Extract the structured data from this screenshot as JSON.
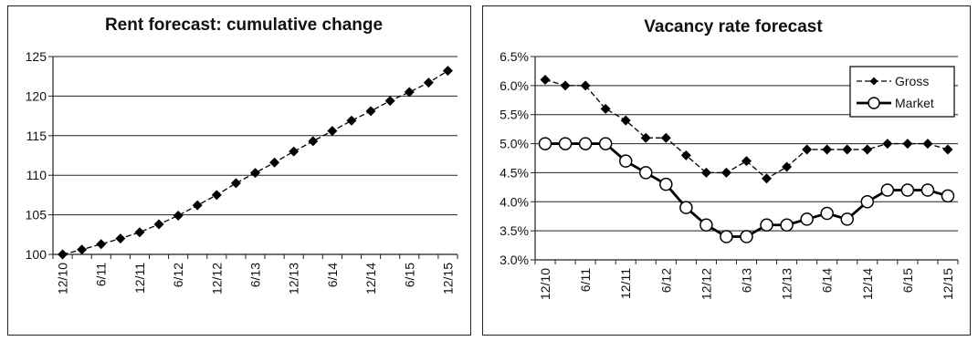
{
  "chart_data": [
    {
      "type": "line",
      "title": "Rent forecast: cumulative change",
      "x_tick_labels": [
        "12/10",
        "6/11",
        "12/11",
        "6/12",
        "12/12",
        "6/13",
        "12/13",
        "6/14",
        "12/14",
        "6/15",
        "12/15"
      ],
      "x": [
        "12/10",
        "3/11",
        "6/11",
        "9/11",
        "12/11",
        "3/12",
        "6/12",
        "9/12",
        "12/12",
        "3/13",
        "6/13",
        "9/13",
        "12/13",
        "3/14",
        "6/14",
        "9/14",
        "12/14",
        "3/15",
        "6/15",
        "9/15",
        "12/15"
      ],
      "ylim": [
        100,
        125
      ],
      "y_ticks": [
        100,
        105,
        110,
        115,
        120,
        125
      ],
      "y_tick_labels": [
        "100",
        "105",
        "110",
        "115",
        "120",
        "125"
      ],
      "grid": true,
      "marker": "diamond",
      "series": [
        {
          "values": [
            100.0,
            100.6,
            101.3,
            102.0,
            102.8,
            103.8,
            104.9,
            106.2,
            107.5,
            109.0,
            110.3,
            111.6,
            113.0,
            114.3,
            115.6,
            116.9,
            118.1,
            119.4,
            120.5,
            121.7,
            123.2
          ],
          "color": "#000000"
        }
      ]
    },
    {
      "type": "line",
      "title": "Vacancy rate forecast",
      "x_tick_labels": [
        "12/10",
        "6/11",
        "12/11",
        "6/12",
        "12/12",
        "6/13",
        "12/13",
        "6/14",
        "12/14",
        "6/15",
        "12/15"
      ],
      "x": [
        "12/10",
        "3/11",
        "6/11",
        "9/11",
        "12/11",
        "3/12",
        "6/12",
        "9/12",
        "12/12",
        "3/13",
        "6/13",
        "9/13",
        "12/13",
        "3/14",
        "6/14",
        "9/14",
        "12/14",
        "3/15",
        "6/15",
        "9/15",
        "12/15"
      ],
      "ylim": [
        3.0,
        6.5
      ],
      "y_ticks": [
        3.0,
        3.5,
        4.0,
        4.5,
        5.0,
        5.5,
        6.0,
        6.5
      ],
      "y_tick_labels": [
        "3.0%",
        "3.5%",
        "4.0%",
        "4.5%",
        "5.0%",
        "5.5%",
        "6.0%",
        "6.5%"
      ],
      "grid": true,
      "legend_position": "top-right",
      "series": [
        {
          "name": "Gross",
          "marker": "diamond",
          "line_style": "dashed",
          "color": "#000000",
          "values": [
            6.1,
            6.0,
            6.0,
            5.6,
            5.4,
            5.1,
            5.1,
            4.8,
            4.5,
            4.5,
            4.7,
            4.4,
            4.6,
            4.9,
            4.9,
            4.9,
            4.9,
            5.0,
            5.0,
            5.0,
            4.9
          ]
        },
        {
          "name": "Market",
          "marker": "circle",
          "line_style": "solid-thick",
          "color": "#000000",
          "values": [
            5.0,
            5.0,
            5.0,
            5.0,
            4.7,
            4.5,
            4.3,
            3.9,
            3.6,
            3.4,
            3.4,
            3.6,
            3.6,
            3.7,
            3.8,
            3.7,
            4.0,
            4.2,
            4.2,
            4.2,
            4.1
          ]
        }
      ]
    }
  ]
}
